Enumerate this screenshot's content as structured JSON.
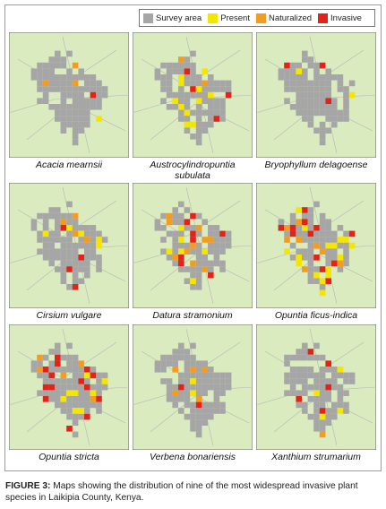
{
  "legend": {
    "items": [
      {
        "label": "Survey area",
        "color": "#a6a6a6"
      },
      {
        "label": "Present",
        "color": "#f5e600"
      },
      {
        "label": "Naturalized",
        "color": "#f39c1f"
      },
      {
        "label": "Invasive",
        "color": "#e2231a"
      }
    ]
  },
  "colors": {
    "background": "#d9ebbf",
    "border": "#666666",
    "road": "#b7b7b7"
  },
  "maps": [
    {
      "title": "Acacia mearnsii"
    },
    {
      "title": "Austrocylindropuntia subulata"
    },
    {
      "title": "Bryophyllum delagoense"
    },
    {
      "title": "Cirsium vulgare"
    },
    {
      "title": "Datura stramonium"
    },
    {
      "title": "Opuntia ficus-indica"
    },
    {
      "title": "Opuntia stricta"
    },
    {
      "title": "Verbena bonariensis"
    },
    {
      "title": "Xanthium strumarium"
    }
  ],
  "caption": {
    "label": "FIGURE 3:",
    "text": " Maps showing the distribution of nine of the most widespread invasive plant species in Laikipia County, Kenya."
  }
}
